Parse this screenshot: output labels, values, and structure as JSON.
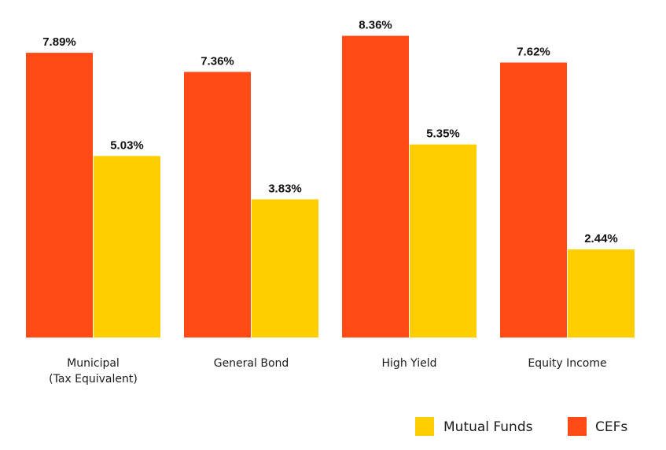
{
  "chart_data": {
    "type": "bar",
    "title": "",
    "xlabel": "",
    "ylabel": "",
    "ylim": [
      0,
      8.5
    ],
    "grid": false,
    "legend_position": "bottom-right",
    "categories": [
      [
        "Municipal",
        "(Tax Equivalent)"
      ],
      [
        "General Bond"
      ],
      [
        "High Yield"
      ],
      [
        "Equity Income"
      ]
    ],
    "series": [
      {
        "name": "CEFs",
        "color": "#FF4A16",
        "values": [
          7.89,
          7.36,
          8.36,
          7.62
        ],
        "labels": [
          "7.89%",
          "7.36%",
          "8.36%",
          "7.62%"
        ]
      },
      {
        "name": "Mutual Funds",
        "color": "#FFCE00",
        "values": [
          5.03,
          3.83,
          5.35,
          2.44
        ],
        "labels": [
          "5.03%",
          "3.83%",
          "5.35%",
          "2.44%"
        ]
      }
    ],
    "legend": [
      {
        "name": "Mutual Funds",
        "color": "#FFCE00"
      },
      {
        "name": "CEFs",
        "color": "#FF4A16"
      }
    ]
  }
}
